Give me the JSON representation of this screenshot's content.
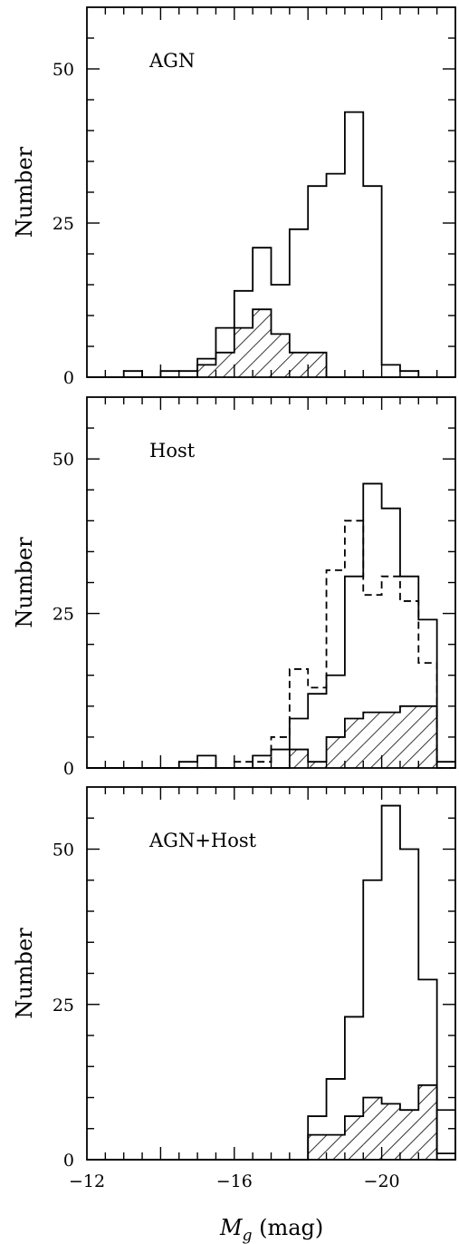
{
  "chart_data": [
    {
      "type": "histogram",
      "panel_label": "AGN",
      "ylabel": "Number",
      "xlim": [
        -12,
        -22
      ],
      "ylim": [
        0,
        60
      ],
      "yticks": [
        0,
        25,
        50
      ],
      "bin_edges": [
        -12,
        -12.5,
        -13,
        -13.5,
        -14,
        -14.5,
        -15,
        -15.5,
        -16,
        -16.5,
        -17,
        -17.5,
        -18,
        -18.5,
        -19,
        -19.5,
        -20,
        -20.5,
        -21,
        -21.5,
        -22
      ],
      "series": [
        {
          "style": "solid",
          "values": [
            0,
            0,
            1,
            0,
            1,
            1,
            3,
            8,
            14,
            21,
            15,
            24,
            31,
            33,
            43,
            31,
            2,
            1,
            0,
            0
          ]
        },
        {
          "style": "hatched",
          "values": [
            0,
            0,
            0,
            0,
            0,
            0,
            2,
            4,
            8,
            11,
            7,
            4,
            4,
            0,
            0,
            0,
            0,
            0,
            0,
            0
          ]
        }
      ]
    },
    {
      "type": "histogram",
      "panel_label": "Host",
      "ylabel": "Number",
      "xlim": [
        -12,
        -22
      ],
      "ylim": [
        0,
        60
      ],
      "yticks": [
        0,
        25,
        50
      ],
      "bin_edges": [
        -12,
        -12.5,
        -13,
        -13.5,
        -14,
        -14.5,
        -15,
        -15.5,
        -16,
        -16.5,
        -17,
        -17.5,
        -18,
        -18.5,
        -19,
        -19.5,
        -20,
        -20.5,
        -21,
        -21.5,
        -22
      ],
      "series": [
        {
          "style": "solid",
          "values": [
            0,
            0,
            0,
            0,
            0,
            1,
            2,
            0,
            0,
            2,
            3,
            8,
            12,
            15,
            31,
            46,
            42,
            31,
            24,
            1
          ]
        },
        {
          "style": "dashed",
          "values": [
            0,
            0,
            0,
            0,
            0,
            0,
            0,
            0,
            1,
            1,
            5,
            16,
            13,
            32,
            40,
            28,
            31,
            27,
            17,
            0
          ]
        },
        {
          "style": "hatched",
          "values": [
            0,
            0,
            0,
            0,
            0,
            0,
            0,
            0,
            0,
            0,
            0,
            3,
            1,
            5,
            8,
            9,
            9,
            10,
            10,
            0
          ]
        }
      ]
    },
    {
      "type": "histogram",
      "panel_label": "AGN+Host",
      "ylabel": "Number",
      "xlabel_main": "M",
      "xlabel_sub": "g",
      "xlabel_unit": " (mag)",
      "xlim": [
        -12,
        -22
      ],
      "ylim": [
        0,
        60
      ],
      "yticks": [
        0,
        25,
        50
      ],
      "xticks": [
        -12,
        -16,
        -20
      ],
      "xtick_labels": [
        "−12",
        "−16",
        "−20"
      ],
      "bin_edges": [
        -12,
        -12.5,
        -13,
        -13.5,
        -14,
        -14.5,
        -15,
        -15.5,
        -16,
        -16.5,
        -17,
        -17.5,
        -18,
        -18.5,
        -19,
        -19.5,
        -20,
        -20.5,
        -21,
        -21.5,
        -22
      ],
      "series": [
        {
          "style": "solid",
          "values": [
            0,
            0,
            0,
            0,
            0,
            0,
            0,
            0,
            0,
            0,
            0,
            0,
            7,
            13,
            23,
            45,
            57,
            50,
            29,
            1
          ]
        },
        {
          "style": "open",
          "values": [
            0,
            0,
            0,
            0,
            0,
            0,
            0,
            0,
            0,
            0,
            0,
            0,
            0,
            0,
            0,
            0,
            0,
            0,
            0,
            8
          ]
        },
        {
          "style": "hatched",
          "values": [
            0,
            0,
            0,
            0,
            0,
            0,
            0,
            0,
            0,
            0,
            0,
            0,
            4,
            4,
            7,
            10,
            9,
            8,
            12,
            0
          ]
        }
      ]
    }
  ]
}
